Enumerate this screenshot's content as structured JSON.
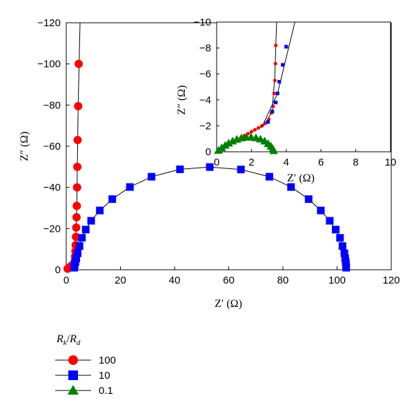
{
  "chart_data": [
    {
      "id": "main",
      "type": "scatter",
      "xlabel": "Z′ (Ω)",
      "ylabel": "Z″ (Ω)",
      "xlim": [
        0,
        120
      ],
      "ylim": [
        0,
        -120
      ],
      "x_ticks": [
        "0",
        "20",
        "40",
        "60",
        "80",
        "100",
        "120"
      ],
      "y_ticks": [
        "0",
        "−20",
        "−40",
        "−60",
        "−80",
        "−100",
        "−120"
      ],
      "x_tick_values": [
        0,
        20,
        40,
        60,
        80,
        100,
        120
      ],
      "y_tick_values": [
        0,
        -20,
        -40,
        -60,
        -80,
        -100,
        -120
      ],
      "grid": false,
      "series": [
        {
          "name": "100",
          "color": "#ff0000",
          "marker": "circle",
          "points": [
            [
              0.5,
              -0.5
            ],
            [
              1.0,
              -1.0
            ],
            [
              1.6,
              -1.6
            ],
            [
              2.2,
              -2.2
            ],
            [
              2.9,
              -3.0
            ],
            [
              3.2,
              -4.5
            ],
            [
              3.3,
              -6.5
            ],
            [
              3.4,
              -9.0
            ],
            [
              3.5,
              -12.0
            ],
            [
              3.6,
              -16.0
            ],
            [
              3.7,
              -20.5
            ],
            [
              3.8,
              -25.5
            ],
            [
              3.9,
              -31.0
            ],
            [
              4.0,
              -40.0
            ],
            [
              4.1,
              -50.0
            ],
            [
              4.2,
              -63.0
            ],
            [
              4.4,
              -79.5
            ],
            [
              4.6,
              -100.0
            ]
          ],
          "fit_line": [
            [
              0.3,
              -0.3
            ],
            [
              2.9,
              -2.9
            ],
            [
              3.3,
              -5
            ],
            [
              3.9,
              -30
            ],
            [
              4.4,
              -80
            ],
            [
              5.1,
              -120
            ]
          ]
        },
        {
          "name": "10",
          "color": "#0000ff",
          "marker": "square",
          "points": [
            [
              2.9,
              -1.0
            ],
            [
              3.1,
              -2.3
            ],
            [
              3.4,
              -3.8
            ],
            [
              3.7,
              -5.5
            ],
            [
              4.2,
              -8.0
            ],
            [
              4.9,
              -11.5
            ],
            [
              5.8,
              -15.5
            ],
            [
              7.2,
              -19.5
            ],
            [
              9.2,
              -23.8
            ],
            [
              12.4,
              -28.8
            ],
            [
              17.0,
              -34.3
            ],
            [
              23.5,
              -40.2
            ],
            [
              31.5,
              -45.2
            ],
            [
              42.0,
              -48.8
            ],
            [
              53.0,
              -49.9
            ],
            [
              64.5,
              -48.7
            ],
            [
              75.0,
              -45.2
            ],
            [
              83.0,
              -40.2
            ],
            [
              89.5,
              -34.3
            ],
            [
              94.0,
              -28.8
            ],
            [
              97.3,
              -23.8
            ],
            [
              99.5,
              -19.5
            ],
            [
              101.1,
              -15.5
            ],
            [
              102.0,
              -11.5
            ],
            [
              102.7,
              -8.0
            ],
            [
              103.0,
              -5.5
            ],
            [
              103.2,
              -3.8
            ],
            [
              103.3,
              -2.3
            ],
            [
              103.4,
              -1.0
            ]
          ]
        },
        {
          "name": "0.1",
          "color": "#008000",
          "marker": "triangle",
          "points": []
        }
      ]
    },
    {
      "id": "inset",
      "type": "scatter",
      "xlabel": "Z′ (Ω)",
      "ylabel": "Z″ (Ω)",
      "xlim": [
        0,
        10
      ],
      "ylim": [
        0,
        -10
      ],
      "x_ticks": [
        "0",
        "2",
        "4",
        "6",
        "8",
        "10"
      ],
      "y_ticks": [
        "0",
        "−2",
        "−4",
        "−6",
        "−8",
        "−10"
      ],
      "x_tick_values": [
        0,
        2,
        4,
        6,
        8,
        10
      ],
      "y_tick_values": [
        0,
        -2,
        -4,
        -6,
        -8,
        -10
      ],
      "grid": false,
      "series": [
        {
          "name": "100",
          "color": "#ff0000",
          "marker": "circle",
          "points": [
            [
              0.2,
              -0.2
            ],
            [
              0.4,
              -0.35
            ],
            [
              0.6,
              -0.5
            ],
            [
              0.8,
              -0.65
            ],
            [
              1.0,
              -0.8
            ],
            [
              1.2,
              -0.95
            ],
            [
              1.4,
              -1.1
            ],
            [
              1.6,
              -1.25
            ],
            [
              1.8,
              -1.4
            ],
            [
              2.0,
              -1.55
            ],
            [
              2.2,
              -1.7
            ],
            [
              2.4,
              -1.85
            ],
            [
              2.6,
              -2.0
            ],
            [
              2.8,
              -2.2
            ],
            [
              3.0,
              -2.5
            ],
            [
              3.15,
              -3.0
            ],
            [
              3.25,
              -3.5
            ],
            [
              3.3,
              -4.5
            ],
            [
              3.35,
              -5.5
            ],
            [
              3.38,
              -6.8
            ],
            [
              3.4,
              -8.2
            ]
          ],
          "fit_line": [
            [
              0,
              0
            ],
            [
              2.8,
              -2.1
            ],
            [
              3.2,
              -3.2
            ],
            [
              3.35,
              -6
            ],
            [
              3.45,
              -10
            ]
          ]
        },
        {
          "name": "10",
          "color": "#0000ff",
          "marker": "square",
          "points": [
            [
              2.95,
              -2.3
            ],
            [
              3.2,
              -3.1
            ],
            [
              3.4,
              -3.8
            ],
            [
              3.5,
              -4.5
            ],
            [
              3.6,
              -5.4
            ],
            [
              3.8,
              -6.7
            ],
            [
              4.0,
              -8.1
            ]
          ],
          "fit_line": [
            [
              2.6,
              -1.9
            ],
            [
              3.5,
              -4.5
            ],
            [
              4.5,
              -10
            ]
          ]
        },
        {
          "name": "0.1",
          "color": "#008000",
          "marker": "triangle",
          "points": [
            [
              0.1,
              -0.1
            ],
            [
              0.29,
              -0.3
            ],
            [
              0.49,
              -0.49
            ],
            [
              0.69,
              -0.66
            ],
            [
              0.92,
              -0.82
            ],
            [
              1.16,
              -0.96
            ],
            [
              1.42,
              -1.06
            ],
            [
              1.7,
              -1.12
            ],
            [
              1.98,
              -1.12
            ],
            [
              2.26,
              -1.07
            ],
            [
              2.52,
              -0.97
            ],
            [
              2.76,
              -0.82
            ],
            [
              2.96,
              -0.62
            ],
            [
              3.12,
              -0.42
            ],
            [
              3.23,
              -0.22
            ],
            [
              3.28,
              -0.07
            ]
          ],
          "fit_line": [
            [
              0.0,
              0.0
            ],
            [
              0.5,
              -0.5
            ],
            [
              1.0,
              -0.86
            ],
            [
              1.65,
              -1.13
            ],
            [
              2.3,
              -1.06
            ],
            [
              2.8,
              -0.8
            ],
            [
              3.15,
              -0.4
            ],
            [
              3.3,
              0.0
            ]
          ]
        }
      ]
    }
  ],
  "legend": {
    "title": "R_k/R_d",
    "title_main": "R",
    "title_sub1": "k",
    "title_slash": "/",
    "title_main2": "R",
    "title_sub2": "d",
    "entries": [
      {
        "label": "100",
        "color": "#ff0000",
        "marker": "circle"
      },
      {
        "label": "10",
        "color": "#0000ff",
        "marker": "square"
      },
      {
        "label": "0.1",
        "color": "#008000",
        "marker": "triangle"
      }
    ],
    "placement": "bottom-left"
  }
}
